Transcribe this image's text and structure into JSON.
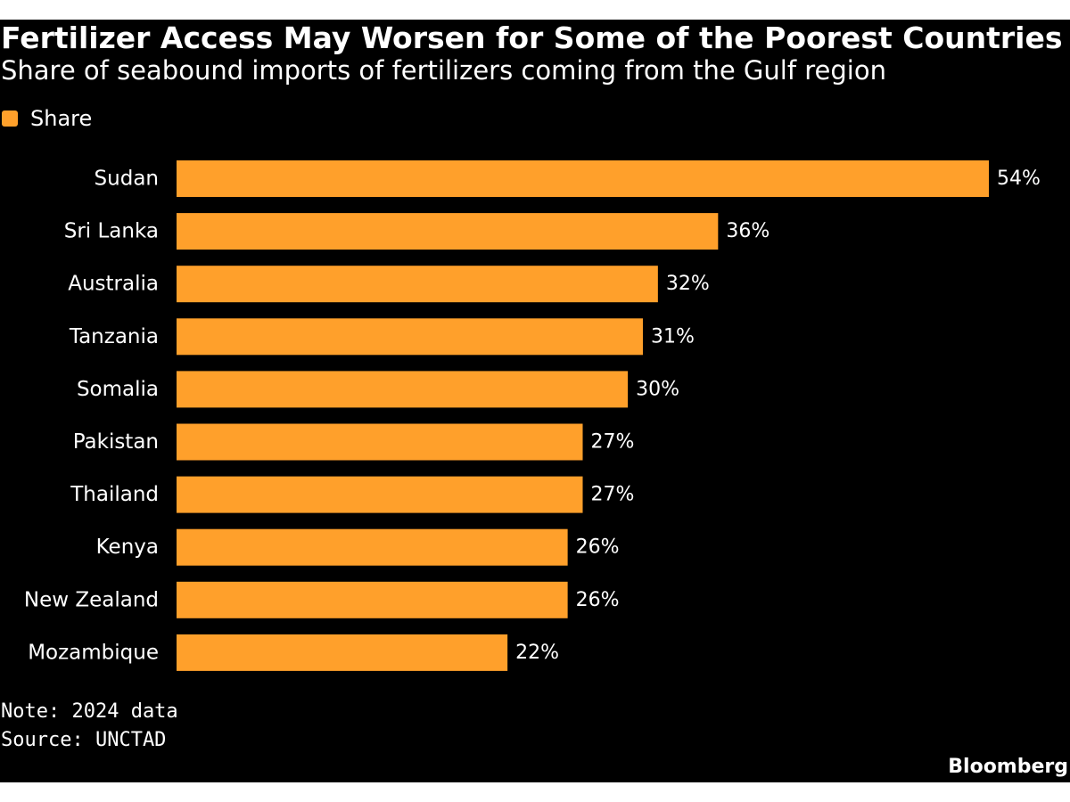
{
  "header": {
    "title": "Fertilizer Access May Worsen for Some of the Poorest Countries",
    "subtitle": "Share of seabound imports of fertilizers coming from the Gulf region"
  },
  "legend": {
    "label": "Share",
    "color": "#ffa02b"
  },
  "footer": {
    "note": "Note: 2024 data",
    "source": "Source: UNCTAD",
    "brand": "Bloomberg"
  },
  "colors": {
    "background": "#000000",
    "bar": "#ffa02b",
    "text": "#ffffff"
  },
  "chart_data": {
    "type": "bar",
    "orientation": "horizontal",
    "title": "Fertilizer Access May Worsen for Some of the Poorest Countries",
    "subtitle": "Share of seabound imports of fertilizers coming from the Gulf region",
    "xlabel": "",
    "ylabel": "",
    "unit": "%",
    "xlim": [
      0,
      54
    ],
    "grid": false,
    "legend_position": "top-left",
    "series": [
      {
        "name": "Share",
        "values": [
          54,
          36,
          32,
          31,
          30,
          27,
          27,
          26,
          26,
          22
        ]
      }
    ],
    "categories": [
      "Sudan",
      "Sri Lanka",
      "Australia",
      "Tanzania",
      "Somalia",
      "Pakistan",
      "Thailand",
      "Kenya",
      "New Zealand",
      "Mozambique"
    ],
    "labels": [
      "54%",
      "36%",
      "32%",
      "31%",
      "30%",
      "27%",
      "27%",
      "26%",
      "26%",
      "22%"
    ]
  }
}
